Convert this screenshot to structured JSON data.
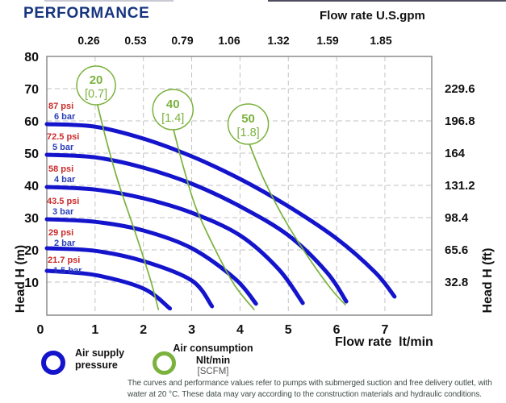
{
  "title": "PERFORMANCE",
  "colors": {
    "title_navy": "#17357f",
    "curve_blue": "#1414cc",
    "psi_red": "#cc2a2a",
    "bar_blue": "#2a3eb8",
    "air_green": "#7ab23d",
    "tick_black": "#111111",
    "grid_gray": "#c2c2c2",
    "border_gray": "#8c8c8c",
    "footnote_gray_green": "#3f4d46",
    "scfm_gray": "#555555"
  },
  "chart_data": {
    "type": "line",
    "title": "PERFORMANCE",
    "x_axis_bottom": {
      "label": "Flow rate  lt/min",
      "units": "lt/min",
      "ticks": [
        0,
        1,
        2,
        3,
        4,
        5,
        6,
        7
      ],
      "range": [
        0,
        8
      ]
    },
    "x_axis_top": {
      "label": "Flow rate U.S.gpm",
      "units": "U.S.gpm",
      "ticks": [
        0.26,
        0.53,
        0.79,
        1.06,
        1.32,
        1.59,
        1.85
      ]
    },
    "y_axis_left": {
      "label": "Head H (m)",
      "units": "m",
      "ticks": [
        80,
        70,
        60,
        50,
        40,
        30,
        20,
        10
      ],
      "range": [
        0,
        80
      ]
    },
    "y_axis_right": {
      "label": "Head H (ft)",
      "units": "ft",
      "ticks": [
        229.6,
        196.8,
        164,
        131.2,
        98.4,
        65.6,
        32.8
      ]
    },
    "grid": true,
    "legend_position": "bottom",
    "series": [
      {
        "name": "air-supply-6-bar",
        "psi_label": "87 psi",
        "bar_label": "6 bar",
        "points": [
          [
            0,
            59
          ],
          [
            1,
            58.2
          ],
          [
            2,
            54.5
          ],
          [
            3,
            49
          ],
          [
            4,
            42
          ],
          [
            5,
            33.5
          ],
          [
            6,
            23.5
          ],
          [
            6.8,
            13
          ],
          [
            7.2,
            5.5
          ]
        ]
      },
      {
        "name": "air-supply-5-bar",
        "psi_label": "72.5 psi",
        "bar_label": "5 bar",
        "points": [
          [
            0,
            49.5
          ],
          [
            1,
            48.7
          ],
          [
            2,
            45.5
          ],
          [
            3,
            40.5
          ],
          [
            4,
            33.5
          ],
          [
            5,
            24.5
          ],
          [
            5.8,
            13
          ],
          [
            6.2,
            4
          ]
        ]
      },
      {
        "name": "air-supply-4-bar",
        "psi_label": "58 psi",
        "bar_label": "4 bar",
        "points": [
          [
            0,
            39.5
          ],
          [
            1,
            38.7
          ],
          [
            2,
            36
          ],
          [
            3,
            31.5
          ],
          [
            4,
            24.5
          ],
          [
            4.8,
            14
          ],
          [
            5.3,
            3.5
          ]
        ]
      },
      {
        "name": "air-supply-3-bar",
        "psi_label": "43.5 psi",
        "bar_label": "3 bar",
        "points": [
          [
            0,
            29.5
          ],
          [
            1,
            28.7
          ],
          [
            2,
            26
          ],
          [
            3,
            20.5
          ],
          [
            3.9,
            11
          ],
          [
            4.33,
            3.3
          ]
        ]
      },
      {
        "name": "air-supply-2-bar",
        "psi_label": "29 psi",
        "bar_label": "2 bar",
        "points": [
          [
            0,
            20.5
          ],
          [
            1,
            19.7
          ],
          [
            2,
            16.5
          ],
          [
            3,
            10.5
          ],
          [
            3.42,
            2.5
          ]
        ]
      },
      {
        "name": "air-supply-1.5-bar",
        "psi_label": "21.7 psi",
        "bar_label": "1.5 bar",
        "points": [
          [
            0,
            13.5
          ],
          [
            1,
            12.2
          ],
          [
            2,
            8
          ],
          [
            2.55,
            1.8
          ]
        ]
      }
    ],
    "air_consumption_curves": [
      {
        "value": "20",
        "scfm": "[0.7]",
        "bubble_at": [
          1.02,
          71
        ],
        "bubble_r": 24,
        "points": [
          [
            1.05,
            65
          ],
          [
            1.25,
            53
          ],
          [
            1.5,
            40
          ],
          [
            1.84,
            25
          ],
          [
            2.14,
            11
          ],
          [
            2.31,
            1.5
          ]
        ]
      },
      {
        "value": "40",
        "scfm": "[1.4]",
        "bubble_at": [
          2.61,
          63.5
        ],
        "bubble_r": 25,
        "points": [
          [
            2.62,
            57.5
          ],
          [
            2.84,
            45
          ],
          [
            3.09,
            33
          ],
          [
            3.49,
            20
          ],
          [
            3.89,
            9
          ],
          [
            4.29,
            1.5
          ]
        ]
      },
      {
        "value": "50",
        "scfm": "[1.8]",
        "bubble_at": [
          4.17,
          59
        ],
        "bubble_r": 25,
        "points": [
          [
            4.19,
            53
          ],
          [
            4.49,
            42
          ],
          [
            4.9,
            30
          ],
          [
            5.4,
            18
          ],
          [
            5.88,
            8
          ],
          [
            6.18,
            3
          ]
        ]
      }
    ]
  },
  "legend": {
    "air_supply": {
      "line1": "Air supply",
      "line2": "pressure"
    },
    "air_consumption": {
      "line1": "Air consumption",
      "line2": "Nlt/min",
      "line3": "[SCFM]"
    }
  },
  "footnote": {
    "line1": "The curves and performance values refer to pumps with submerged suction and free delivery outlet, with",
    "line2": "water at 20 °C. These data may vary according to the construction materials and hydraulic conditions."
  }
}
